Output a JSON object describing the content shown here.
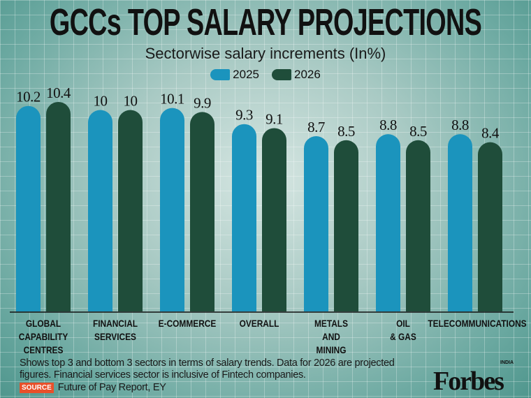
{
  "title": "GCCs TOP SALARY PROJECTIONS",
  "chart_data": {
    "type": "bar",
    "title": "GCCs TOP SALARY PROJECTIONS",
    "subtitle": "Sectorwise salary increments (In%)",
    "categories": [
      "GLOBAL CAPABILITY CENTRES",
      "FINANCIAL SERVICES",
      "E-COMMERCE",
      "OVERALL",
      "METALS AND MINING",
      "OIL & GAS",
      "TELECOMMUNICATIONS"
    ],
    "category_lines": [
      [
        "GLOBAL",
        "CAPABILITY",
        "CENTRES"
      ],
      [
        "FINANCIAL",
        "SERVICES"
      ],
      [
        "E-COMMERCE"
      ],
      [
        "OVERALL"
      ],
      [
        "METALS",
        "AND",
        "MINING"
      ],
      [
        "OIL",
        "& GAS"
      ],
      [
        "TELECOMMUNICATIONS"
      ]
    ],
    "series": [
      {
        "name": "2025",
        "color": "#1b94bd",
        "values": [
          10.2,
          10,
          10.1,
          9.3,
          8.7,
          8.8,
          8.8
        ],
        "labels": [
          "10.2",
          "10",
          "10.1",
          "9.3",
          "8.7",
          "8.8",
          "8.8"
        ]
      },
      {
        "name": "2026",
        "color": "#1f4d3a",
        "values": [
          10.4,
          10,
          9.9,
          9.1,
          8.5,
          8.5,
          8.4
        ],
        "labels": [
          "10.4",
          "10",
          "9.9",
          "9.1",
          "8.5",
          "8.5",
          "8.4"
        ]
      }
    ],
    "ylim": [
      0,
      10.4
    ],
    "legend": "top-center",
    "grid": false
  },
  "footnote": "Shows top 3 and bottom 3 sectors in terms of salary trends. Data for 2026 are projected figures. Financial services sector is inclusive of Fintech companies.",
  "source_label": "SOURCE",
  "source": "Future of Pay Report, EY",
  "logo": "Forbes",
  "logo_sub": "INDIA"
}
